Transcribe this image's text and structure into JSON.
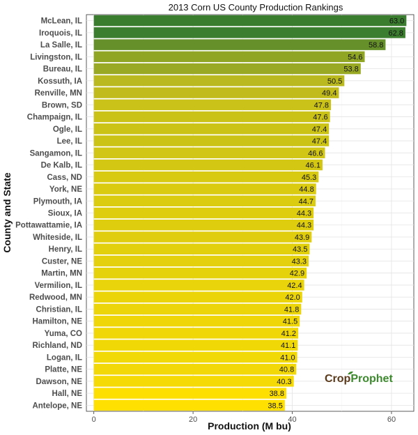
{
  "chart_data": {
    "type": "bar",
    "orientation": "horizontal",
    "title": "2013 Corn US County Production Rankings",
    "xlabel": "Production (M bu)",
    "ylabel": "County and State",
    "xlim": [
      -1.5,
      64.5
    ],
    "xticks": [
      0,
      20,
      40,
      60
    ],
    "xtick_labels": [
      "0",
      "20",
      "40",
      "60"
    ],
    "grid": true,
    "categories": [
      "McLean, IL",
      "Iroquois, IL",
      "La Salle, IL",
      "Livingston, IL",
      "Bureau, IL",
      "Kossuth, IA",
      "Renville, MN",
      "Brown, SD",
      "Champaign, IL",
      "Ogle, IL",
      "Lee, IL",
      "Sangamon, IL",
      "De Kalb, IL",
      "Cass, ND",
      "York, NE",
      "Plymouth, IA",
      "Sioux, IA",
      "Pottawattamie, IA",
      "Whiteside, IL",
      "Henry, IL",
      "Custer, NE",
      "Martin, MN",
      "Vermilion, IL",
      "Redwood, MN",
      "Christian, IL",
      "Hamilton, NE",
      "Yuma, CO",
      "Richland, ND",
      "Logan, IL",
      "Platte, NE",
      "Dawson, NE",
      "Hall, NE",
      "Antelope, NE"
    ],
    "values": [
      63.0,
      62.8,
      58.8,
      54.6,
      53.8,
      50.5,
      49.4,
      47.8,
      47.6,
      47.4,
      47.4,
      46.6,
      46.1,
      45.3,
      44.8,
      44.7,
      44.3,
      44.3,
      43.9,
      43.5,
      43.3,
      42.9,
      42.4,
      42.0,
      41.8,
      41.5,
      41.2,
      41.1,
      41.0,
      40.8,
      40.3,
      38.8,
      38.5
    ],
    "value_labels": [
      "63.0",
      "62.8",
      "58.8",
      "54.6",
      "53.8",
      "50.5",
      "49.4",
      "47.8",
      "47.6",
      "47.4",
      "47.4",
      "46.6",
      "46.1",
      "45.3",
      "44.8",
      "44.7",
      "44.3",
      "44.3",
      "43.9",
      "43.5",
      "43.3",
      "42.9",
      "42.4",
      "42.0",
      "41.8",
      "41.5",
      "41.2",
      "41.1",
      "41.0",
      "40.8",
      "40.3",
      "38.8",
      "38.5"
    ],
    "color_scale": {
      "low": "#ffe000",
      "mid": "#b9b820",
      "high": "#3a7d2f"
    }
  },
  "logo": {
    "part1": "Crop",
    "part2": "Prophet",
    "color1": "#5a3a1a",
    "color2": "#3d8a2e"
  }
}
